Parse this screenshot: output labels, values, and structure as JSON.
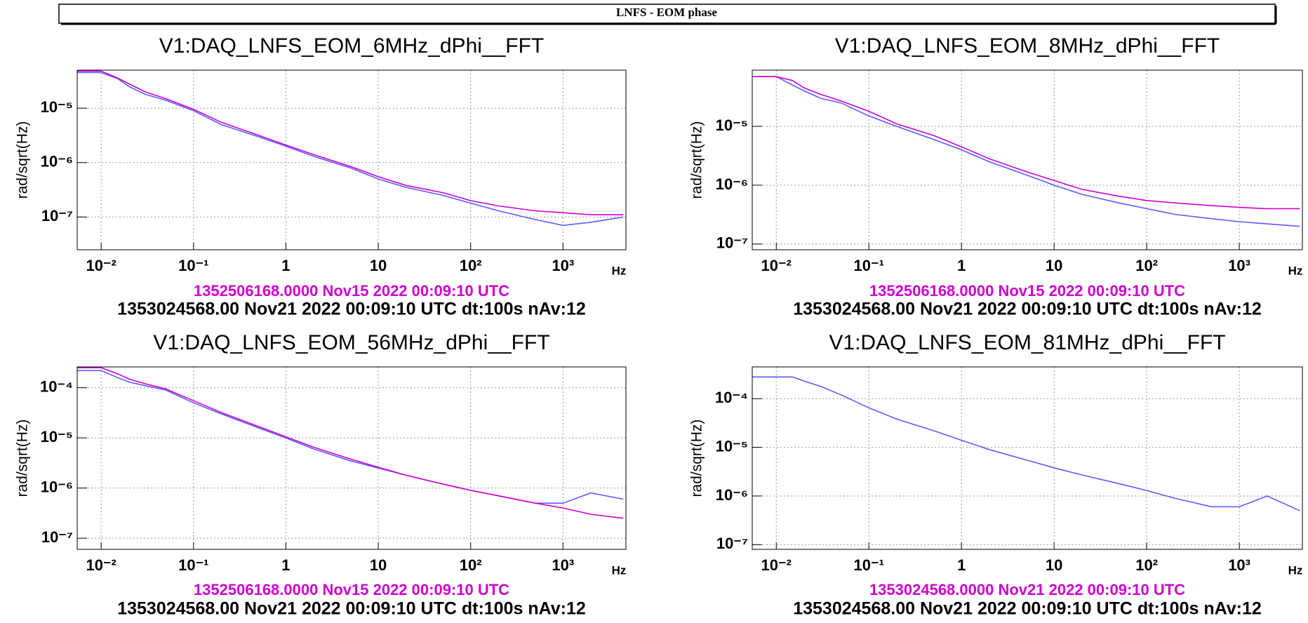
{
  "header": {
    "title": "LNFS - EOM phase"
  },
  "chart_data": [
    {
      "type": "line",
      "title": "V1:DAQ_LNFS_EOM_6MHz_dPhi__FFT",
      "y_label": "rad/sqrt(Hz)",
      "x_label": "Hz",
      "reference_label": "1352506168.0000 Nov15 2022 00:09:10 UTC",
      "current_label": "1353024568.00 Nov21 2022 00:09:10 UTC dt:100s nAv:12",
      "log_x": true,
      "log_y": true,
      "grid": true,
      "xlim": [
        0.0055,
        4800
      ],
      "ylim": [
        2.5e-08,
        5e-05
      ],
      "xticks": [
        {
          "value": 0.01,
          "label": "10⁻²"
        },
        {
          "value": 0.1,
          "label": "10⁻¹"
        },
        1,
        10,
        {
          "value": 100,
          "label": "10²"
        },
        {
          "value": 1000,
          "label": "10³"
        }
      ],
      "yticks": [
        {
          "value": 1e-07,
          "label": "10⁻⁷"
        },
        {
          "value": 1e-06,
          "label": "10⁻⁶"
        },
        {
          "value": 1e-05,
          "label": "10⁻⁵"
        }
      ],
      "x": [
        0.0055,
        0.01,
        0.015,
        0.02,
        0.03,
        0.05,
        0.1,
        0.2,
        0.5,
        1,
        2,
        5,
        10,
        20,
        50,
        100,
        200,
        500,
        1000,
        2000,
        4500
      ],
      "series": [
        {
          "color": "#5b5bff",
          "values": [
            4.5e-05,
            4.5e-05,
            3.5e-05,
            2.5e-05,
            1.8e-05,
            1.4e-05,
            9e-06,
            5e-06,
            3e-06,
            2e-06,
            1.3e-06,
            8e-07,
            5e-07,
            3.5e-07,
            2.5e-07,
            1.8e-07,
            1.3e-07,
            9e-08,
            7e-08,
            8e-08,
            1e-07
          ]
        },
        {
          "color": "#d000d0",
          "values": [
            4.8e-05,
            4.8e-05,
            3.6e-05,
            2.8e-05,
            2e-05,
            1.5e-05,
            9.5e-06,
            5.5e-06,
            3.2e-06,
            2.1e-06,
            1.4e-06,
            8.5e-07,
            5.5e-07,
            3.8e-07,
            2.8e-07,
            2e-07,
            1.6e-07,
            1.3e-07,
            1.2e-07,
            1.1e-07,
            1.1e-07
          ]
        }
      ]
    },
    {
      "type": "line",
      "title": "V1:DAQ_LNFS_EOM_8MHz_dPhi__FFT",
      "y_label": "rad/sqrt(Hz)",
      "x_label": "Hz",
      "reference_label": "1352506168.0000 Nov15 2022 00:09:10 UTC",
      "current_label": "1353024568.00 Nov21 2022 00:09:10 UTC dt:100s nAv:12",
      "log_x": true,
      "log_y": true,
      "grid": true,
      "xlim": [
        0.0055,
        4800
      ],
      "ylim": [
        8e-08,
        9e-05
      ],
      "xticks": [
        {
          "value": 0.01,
          "label": "10⁻²"
        },
        {
          "value": 0.1,
          "label": "10⁻¹"
        },
        1,
        10,
        {
          "value": 100,
          "label": "10²"
        },
        {
          "value": 1000,
          "label": "10³"
        }
      ],
      "yticks": [
        {
          "value": 1e-07,
          "label": "10⁻⁷"
        },
        {
          "value": 1e-06,
          "label": "10⁻⁶"
        },
        {
          "value": 1e-05,
          "label": "10⁻⁵"
        }
      ],
      "x": [
        0.0055,
        0.01,
        0.015,
        0.02,
        0.03,
        0.05,
        0.1,
        0.2,
        0.5,
        1,
        2,
        5,
        10,
        20,
        50,
        100,
        200,
        500,
        1000,
        2000,
        4500
      ],
      "series": [
        {
          "color": "#5b5bff",
          "values": [
            7e-05,
            7e-05,
            5e-05,
            4e-05,
            3e-05,
            2.5e-05,
            1.5e-05,
            1e-05,
            6e-06,
            4e-06,
            2.5e-06,
            1.5e-06,
            1e-06,
            7e-07,
            5e-07,
            4e-07,
            3.2e-07,
            2.7e-07,
            2.4e-07,
            2.2e-07,
            2e-07
          ]
        },
        {
          "color": "#d000d0",
          "values": [
            7e-05,
            7e-05,
            6e-05,
            4.5e-05,
            3.5e-05,
            2.7e-05,
            1.8e-05,
            1.1e-05,
            7e-06,
            4.5e-06,
            2.8e-06,
            1.7e-06,
            1.2e-06,
            8.5e-07,
            6.5e-07,
            5.5e-07,
            5e-07,
            4.5e-07,
            4.2e-07,
            4e-07,
            4e-07
          ]
        }
      ]
    },
    {
      "type": "line",
      "title": "V1:DAQ_LNFS_EOM_56MHz_dPhi__FFT",
      "y_label": "rad/sqrt(Hz)",
      "x_label": "Hz",
      "reference_label": "1352506168.0000 Nov15 2022 00:09:10 UTC",
      "current_label": "1353024568.00 Nov21 2022 00:09:10 UTC dt:100s nAv:12",
      "log_x": true,
      "log_y": true,
      "grid": true,
      "xlim": [
        0.0055,
        4800
      ],
      "ylim": [
        6e-08,
        0.00026
      ],
      "xticks": [
        {
          "value": 0.01,
          "label": "10⁻²"
        },
        {
          "value": 0.1,
          "label": "10⁻¹"
        },
        1,
        10,
        {
          "value": 100,
          "label": "10²"
        },
        {
          "value": 1000,
          "label": "10³"
        }
      ],
      "yticks": [
        {
          "value": 1e-07,
          "label": "10⁻⁷"
        },
        {
          "value": 1e-06,
          "label": "10⁻⁶"
        },
        {
          "value": 1e-05,
          "label": "10⁻⁵"
        },
        {
          "value": 0.0001,
          "label": "10⁻⁴"
        }
      ],
      "x": [
        0.0055,
        0.01,
        0.015,
        0.02,
        0.03,
        0.05,
        0.1,
        0.2,
        0.5,
        1,
        2,
        5,
        10,
        20,
        50,
        100,
        200,
        500,
        1000,
        2000,
        4500
      ],
      "series": [
        {
          "color": "#5b5bff",
          "values": [
            0.00022,
            0.00022,
            0.00016,
            0.00013,
            0.00011,
            9e-05,
            5e-05,
            3e-05,
            1.6e-05,
            1e-05,
            6e-06,
            3.5e-06,
            2.5e-06,
            1.8e-06,
            1.2e-06,
            9e-07,
            7e-07,
            5e-07,
            5e-07,
            8e-07,
            6e-07
          ]
        },
        {
          "color": "#d000d0",
          "values": [
            0.00025,
            0.00025,
            0.00019,
            0.00015,
            0.00012,
            9.5e-05,
            5.5e-05,
            3.2e-05,
            1.7e-05,
            1.05e-05,
            6.5e-06,
            3.8e-06,
            2.6e-06,
            1.8e-06,
            1.2e-06,
            9e-07,
            7e-07,
            5e-07,
            4e-07,
            3e-07,
            2.5e-07
          ]
        }
      ]
    },
    {
      "type": "line",
      "title": "V1:DAQ_LNFS_EOM_81MHz_dPhi__FFT",
      "y_label": "rad/sqrt(Hz)",
      "x_label": "Hz",
      "reference_label": "1353024568.0000 Nov21 2022 00:09:10 UTC",
      "current_label": "1353024568.00 Nov21 2022 00:09:10 UTC dt:100s nAv:12",
      "log_x": true,
      "log_y": true,
      "grid": true,
      "xlim": [
        0.0055,
        4800
      ],
      "ylim": [
        8e-08,
        0.00045
      ],
      "xticks": [
        {
          "value": 0.01,
          "label": "10⁻²"
        },
        {
          "value": 0.1,
          "label": "10⁻¹"
        },
        1,
        10,
        {
          "value": 100,
          "label": "10²"
        },
        {
          "value": 1000,
          "label": "10³"
        }
      ],
      "yticks": [
        {
          "value": 1e-07,
          "label": "10⁻⁷"
        },
        {
          "value": 1e-06,
          "label": "10⁻⁶"
        },
        {
          "value": 1e-05,
          "label": "10⁻⁵"
        },
        {
          "value": 0.0001,
          "label": "10⁻⁴"
        }
      ],
      "x": [
        0.0055,
        0.01,
        0.015,
        0.02,
        0.03,
        0.05,
        0.1,
        0.2,
        0.5,
        1,
        2,
        5,
        10,
        20,
        50,
        100,
        200,
        500,
        1000,
        2000,
        4500
      ],
      "series": [
        {
          "color": "#5b5bff",
          "values": [
            0.00028,
            0.00028,
            0.00028,
            0.00023,
            0.00018,
            0.00012,
            6.5e-05,
            3.8e-05,
            2.2e-05,
            1.4e-05,
            9e-06,
            5.5e-06,
            3.8e-06,
            2.7e-06,
            1.8e-06,
            1.3e-06,
            9e-07,
            6e-07,
            6e-07,
            1e-06,
            5e-07
          ]
        }
      ]
    }
  ]
}
